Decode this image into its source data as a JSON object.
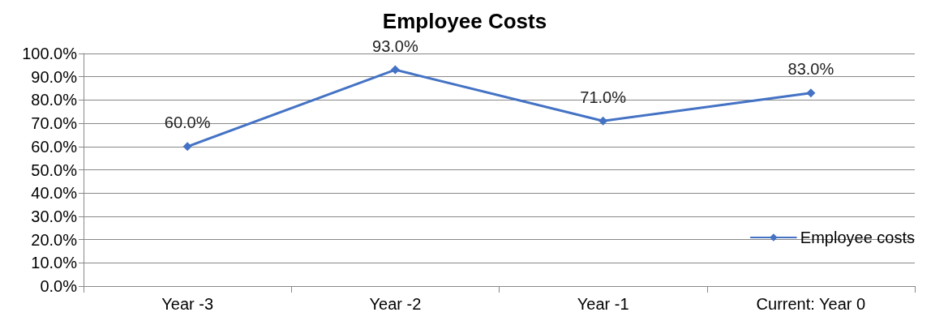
{
  "chart_data": {
    "type": "line",
    "title": "Employee Costs",
    "categories": [
      "Year -3",
      "Year -2",
      "Year -1",
      "Current: Year 0"
    ],
    "series": [
      {
        "name": "Employee costs",
        "color": "#4472c4",
        "values": [
          60,
          93,
          71,
          83
        ],
        "value_labels": [
          "60.0%",
          "93.0%",
          "71.0%",
          "83.0%"
        ]
      }
    ],
    "ylim": [
      0,
      100
    ],
    "yticks": [
      {
        "value": 0,
        "label": "0.0%"
      },
      {
        "value": 10,
        "label": "10.0%"
      },
      {
        "value": 20,
        "label": "20.0%"
      },
      {
        "value": 30,
        "label": "30.0%"
      },
      {
        "value": 40,
        "label": "40.0%"
      },
      {
        "value": 50,
        "label": "50.0%"
      },
      {
        "value": 60,
        "label": "60.0%"
      },
      {
        "value": 70,
        "label": "70.0%"
      },
      {
        "value": 80,
        "label": "80.0%"
      },
      {
        "value": 90,
        "label": "90.0%"
      },
      {
        "value": 100,
        "label": "100.0%"
      }
    ],
    "grid": "y",
    "legend": "right",
    "marker": "diamond",
    "line_style": "solid"
  }
}
